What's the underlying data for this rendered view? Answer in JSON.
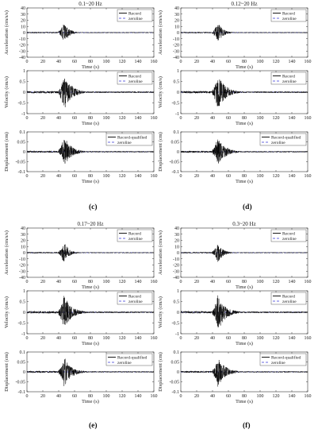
{
  "chart_data": [
    {
      "id": "c-acc",
      "type": "line",
      "group": "c",
      "row": "acc",
      "title": "0.1~20 Hz",
      "xlabel": "Time (s)",
      "ylabel": "Acceleration (cm/s/s)",
      "xlim": [
        0,
        160
      ],
      "ylim": [
        -40,
        40
      ],
      "xticks": [
        0,
        20,
        40,
        60,
        80,
        100,
        120,
        140,
        160
      ],
      "yticks": [
        -40,
        -30,
        -20,
        -10,
        0,
        10,
        20,
        30,
        40
      ],
      "legend": [
        "Record",
        "zeroline"
      ],
      "legend_position": "top-right",
      "peak_time": 47,
      "peak_value": 18
    },
    {
      "id": "d-acc",
      "type": "line",
      "group": "d",
      "row": "acc",
      "title": "0.12~20 Hz",
      "xlabel": "Time (s)",
      "ylabel": "Acceleration (cm/s/s)",
      "xlim": [
        0,
        160
      ],
      "ylim": [
        -40,
        40
      ],
      "xticks": [
        0,
        20,
        40,
        60,
        80,
        100,
        120,
        140,
        160
      ],
      "yticks": [
        -40,
        -30,
        -20,
        -10,
        0,
        10,
        20,
        30,
        40
      ],
      "legend": [
        "Record",
        "zeroline"
      ],
      "legend_position": "top-right",
      "peak_time": 47,
      "peak_value": 18
    },
    {
      "id": "c-vel",
      "type": "line",
      "group": "c",
      "row": "vel",
      "title": "",
      "xlabel": "Time (s)",
      "ylabel": "Velocity (cm/s)",
      "xlim": [
        0,
        160
      ],
      "ylim": [
        -1,
        1
      ],
      "xticks": [
        0,
        20,
        40,
        60,
        80,
        100,
        120,
        140,
        160
      ],
      "yticks": [
        -1,
        -0.5,
        0,
        0.5,
        1
      ],
      "legend": [
        "Record",
        "zeroline"
      ],
      "legend_position": "top-right",
      "peak_time": 47,
      "peak_value": 0.9
    },
    {
      "id": "d-vel",
      "type": "line",
      "group": "d",
      "row": "vel",
      "title": "",
      "xlabel": "Time (s)",
      "ylabel": "Velocity (cm/s)",
      "xlim": [
        0,
        160
      ],
      "ylim": [
        -1,
        1
      ],
      "xticks": [
        0,
        20,
        40,
        60,
        80,
        100,
        120,
        140,
        160
      ],
      "yticks": [
        -1,
        -0.5,
        0,
        0.5,
        1
      ],
      "legend": [
        "Record",
        "zeroline"
      ],
      "legend_position": "top-right",
      "peak_time": 47,
      "peak_value": 0.9
    },
    {
      "id": "c-dis",
      "type": "line",
      "group": "c",
      "row": "dis",
      "title": "",
      "xlabel": "Time (s)",
      "ylabel": "Displacement (cm)",
      "xlim": [
        0,
        160
      ],
      "ylim": [
        -0.1,
        0.1
      ],
      "xticks": [
        0,
        20,
        40,
        60,
        80,
        100,
        120,
        140,
        160
      ],
      "yticks": [
        -0.1,
        -0.05,
        0,
        0.05,
        0.1
      ],
      "legend": [
        "Record-qualified",
        "zeroline"
      ],
      "legend_position": "top-right",
      "peak_time": 47,
      "peak_value": 0.08
    },
    {
      "id": "d-dis",
      "type": "line",
      "group": "d",
      "row": "dis",
      "title": "",
      "xlabel": "Time (s)",
      "ylabel": "Displacement (cm)",
      "xlim": [
        0,
        160
      ],
      "ylim": [
        -0.1,
        0.1
      ],
      "xticks": [
        0,
        20,
        40,
        60,
        80,
        100,
        120,
        140,
        160
      ],
      "yticks": [
        -0.1,
        -0.05,
        0,
        0.05,
        0.1
      ],
      "legend": [
        "Record-qualified",
        "zeroline"
      ],
      "legend_position": "top-right",
      "peak_time": 47,
      "peak_value": 0.08
    },
    {
      "id": "e-acc",
      "type": "line",
      "group": "e",
      "row": "acc",
      "title": "0.17~20 Hz",
      "xlabel": "Time (s)",
      "ylabel": "Acceleration (cm/s/s)",
      "xlim": [
        0,
        160
      ],
      "ylim": [
        -40,
        40
      ],
      "xticks": [
        0,
        20,
        40,
        60,
        80,
        100,
        120,
        140,
        160
      ],
      "yticks": [
        -40,
        -30,
        -20,
        -10,
        0,
        10,
        20,
        30,
        40
      ],
      "legend": [
        "Record",
        "zeroline"
      ],
      "legend_position": "top-right",
      "peak_time": 47,
      "peak_value": 18
    },
    {
      "id": "f-acc",
      "type": "line",
      "group": "f",
      "row": "acc",
      "title": "0.3~20 Hz",
      "xlabel": "Time (s)",
      "ylabel": "Acceleration (cm/s/s)",
      "xlim": [
        0,
        160
      ],
      "ylim": [
        -40,
        40
      ],
      "xticks": [
        0,
        20,
        40,
        60,
        80,
        100,
        120,
        140,
        160
      ],
      "yticks": [
        -40,
        -30,
        -20,
        -10,
        0,
        10,
        20,
        30,
        40
      ],
      "legend": [
        "Record",
        "zeroline"
      ],
      "legend_position": "top-right",
      "peak_time": 47,
      "peak_value": 18
    },
    {
      "id": "e-vel",
      "type": "line",
      "group": "e",
      "row": "vel",
      "title": "",
      "xlabel": "Time (s)",
      "ylabel": "Velocity (cm/s)",
      "xlim": [
        0,
        160
      ],
      "ylim": [
        -1,
        1
      ],
      "xticks": [
        0,
        20,
        40,
        60,
        80,
        100,
        120,
        140,
        160
      ],
      "yticks": [
        -1,
        -0.5,
        0,
        0.5,
        1
      ],
      "legend": [
        "Record",
        "zeroline"
      ],
      "legend_position": "top-right",
      "peak_time": 47,
      "peak_value": 0.9
    },
    {
      "id": "f-vel",
      "type": "line",
      "group": "f",
      "row": "vel",
      "title": "",
      "xlabel": "Time (s)",
      "ylabel": "Velocity (cm/s)",
      "xlim": [
        0,
        160
      ],
      "ylim": [
        -1,
        1
      ],
      "xticks": [
        0,
        20,
        40,
        60,
        80,
        100,
        120,
        140,
        160
      ],
      "yticks": [
        -1,
        -0.5,
        0,
        0.5,
        1
      ],
      "legend": [
        "Record",
        "zeroline"
      ],
      "legend_position": "top-right",
      "peak_time": 47,
      "peak_value": 0.9
    },
    {
      "id": "e-dis",
      "type": "line",
      "group": "e",
      "row": "dis",
      "title": "",
      "xlabel": "Time (s)",
      "ylabel": "Displacement (cm)",
      "xlim": [
        0,
        160
      ],
      "ylim": [
        -0.1,
        0.1
      ],
      "xticks": [
        0,
        20,
        40,
        60,
        80,
        100,
        120,
        140,
        160
      ],
      "yticks": [
        -0.1,
        -0.05,
        0,
        0.05,
        0.1
      ],
      "legend": [
        "Record-qualified",
        "zeroline"
      ],
      "legend_position": "top-right",
      "peak_time": 47,
      "peak_value": 0.08
    },
    {
      "id": "f-dis",
      "type": "line",
      "group": "f",
      "row": "dis",
      "title": "",
      "xlabel": "Time (s)",
      "ylabel": "Displacement (cm)",
      "xlim": [
        0,
        160
      ],
      "ylim": [
        -0.1,
        0.1
      ],
      "xticks": [
        0,
        20,
        40,
        60,
        80,
        100,
        120,
        140,
        160
      ],
      "yticks": [
        -0.1,
        -0.05,
        0,
        0.05,
        0.1
      ],
      "legend": [
        "Record-qualified",
        "zeroline"
      ],
      "legend_position": "top-right",
      "peak_time": 47,
      "peak_value": 0.08
    }
  ],
  "panel_labels": {
    "c": "(c)",
    "d": "(d)",
    "e": "(e)",
    "f": "(f)"
  },
  "colors": {
    "record": "#000000",
    "zeroline": "#3a3ad8",
    "axis": "#333333"
  }
}
